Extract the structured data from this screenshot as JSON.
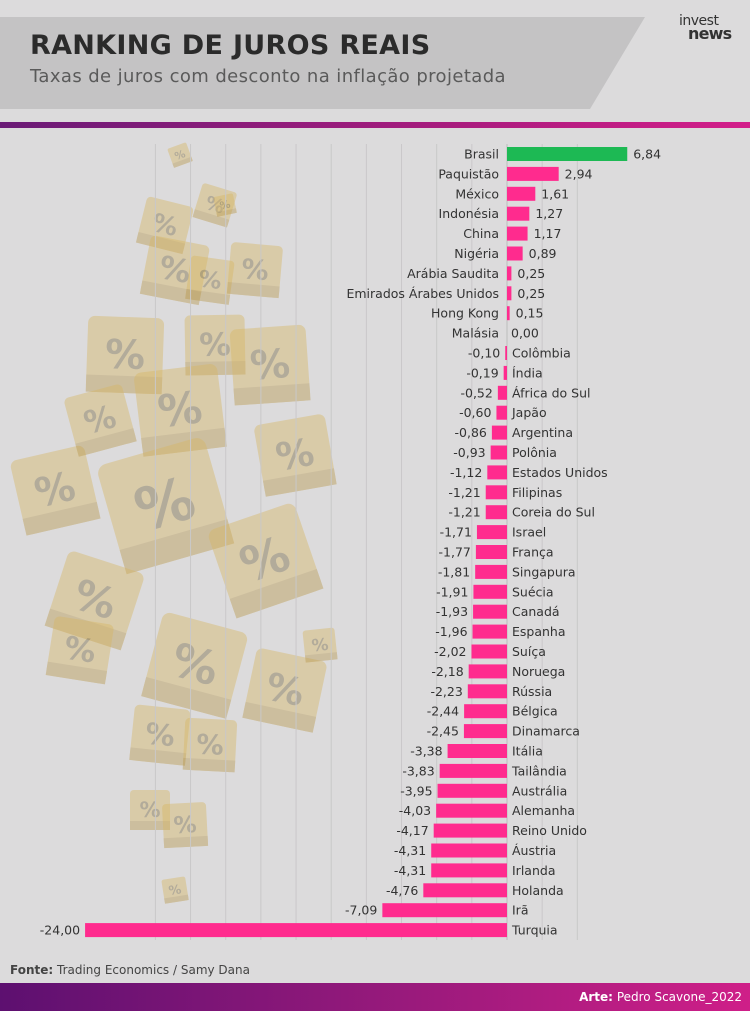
{
  "header": {
    "title": "RANKING DE JUROS REAIS",
    "subtitle": "Taxas de juros com desconto na inflação projetada",
    "logo_line1": "invest",
    "logo_line2": "news"
  },
  "footer": {
    "source_label": "Fonte:",
    "source_value": "Trading Economics / Samy Dana",
    "credit_label": "Arte:",
    "credit_value": "Pedro Scavone_2022"
  },
  "colors": {
    "positive_highlight": "#1db954",
    "bar": "#ff2b8e",
    "background": "#dcdbdc",
    "accent_gradient_start": "#6a1b76",
    "accent_gradient_end": "#d31e8a",
    "cube": "#d7b663"
  },
  "background_decoration": "percent-cube-icon",
  "chart_data": {
    "type": "bar",
    "orientation": "horizontal",
    "title": "RANKING DE JUROS REAIS",
    "subtitle": "Taxas de juros com desconto na inflação projetada",
    "xlim": [
      -24,
      8
    ],
    "grid": true,
    "categories": [
      "Brasil",
      "Paquistão",
      "México",
      "Indonésia",
      "China",
      "Nigéria",
      "Arábia Saudita",
      "Emirados Árabes Unidos",
      "Hong Kong",
      "Malásia",
      "Colômbia",
      "Índia",
      "África do Sul",
      "Japão",
      "Argentina",
      "Polônia",
      "Estados Unidos",
      "Filipinas",
      "Coreia do Sul",
      "Israel",
      "França",
      "Singapura",
      "Suécia",
      "Canadá",
      "Espanha",
      "Suíça",
      "Noruega",
      "Rússia",
      "Bélgica",
      "Dinamarca",
      "Itália",
      "Tailândia",
      "Austrália",
      "Alemanha",
      "Reino Unido",
      "Áustria",
      "Irlanda",
      "Holanda",
      "Irã",
      "Turquia"
    ],
    "values": [
      6.84,
      2.94,
      1.61,
      1.27,
      1.17,
      0.89,
      0.25,
      0.25,
      0.15,
      0.0,
      -0.1,
      -0.19,
      -0.52,
      -0.6,
      -0.86,
      -0.93,
      -1.12,
      -1.21,
      -1.21,
      -1.71,
      -1.77,
      -1.81,
      -1.91,
      -1.93,
      -1.96,
      -2.02,
      -2.18,
      -2.23,
      -2.44,
      -2.45,
      -3.38,
      -3.83,
      -3.95,
      -4.03,
      -4.17,
      -4.31,
      -4.31,
      -4.76,
      -7.09,
      -24.0
    ],
    "value_labels": [
      "6,84",
      "2,94",
      "1,61",
      "1,27",
      "1,17",
      "0,89",
      "0,25",
      "0,25",
      "0,15",
      "0,00",
      "-0,10",
      "-0,19",
      "-0,52",
      "-0,60",
      "-0,86",
      "-0,93",
      "-1,12",
      "-1,21",
      "-1,21",
      "-1,71",
      "-1,77",
      "-1,81",
      "-1,91",
      "-1,93",
      "-1,96",
      "-2,02",
      "-2,18",
      "-2,23",
      "-2,44",
      "-2,45",
      "-3,38",
      "-3,83",
      "-3,95",
      "-4,03",
      "-4,17",
      "-4,31",
      "-4,31",
      "-4,76",
      "-7,09",
      "-24,00"
    ],
    "highlight_category": "Brasil"
  }
}
